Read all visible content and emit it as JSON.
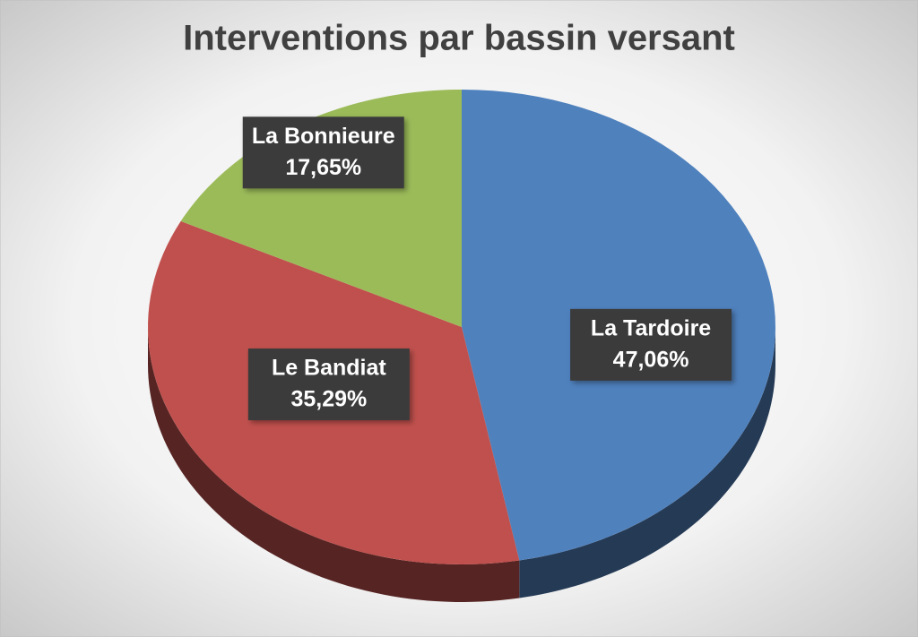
{
  "chart_data": {
    "type": "pie",
    "title": "Interventions par bassin versant",
    "categories": [
      "La Tardoire",
      "Le Bandiat",
      "La Bonnieure"
    ],
    "values": [
      47.06,
      35.29,
      17.65
    ],
    "value_labels": [
      "47,06%",
      "35,29%",
      "17,65%"
    ],
    "colors": [
      "#4f81bd",
      "#c0504d",
      "#9bbb59"
    ]
  }
}
